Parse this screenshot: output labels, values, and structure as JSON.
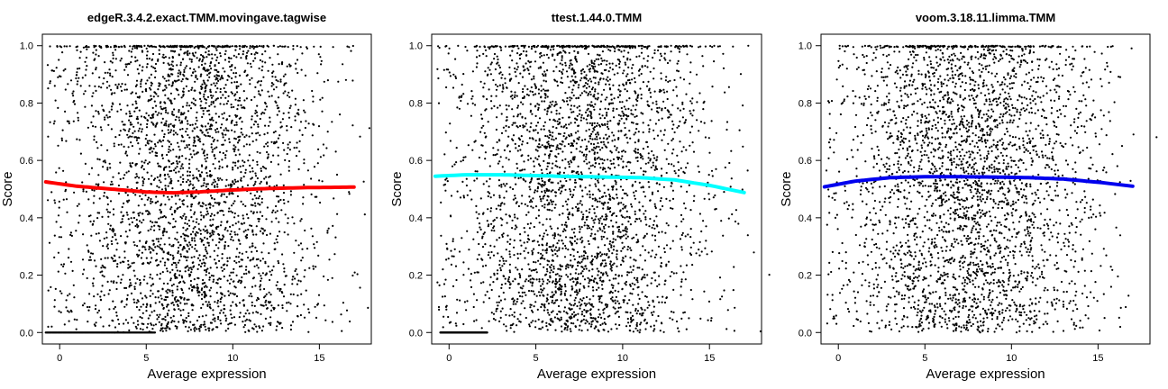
{
  "chart_data": [
    {
      "type": "scatter",
      "title": "edgeR.3.4.2.exact.TMM.movingave.tagwise",
      "xlabel": "Average expression",
      "ylabel": "Score",
      "xlim": [
        -1,
        18
      ],
      "ylim": [
        -0.04,
        1.04
      ],
      "x_ticks": [
        "0",
        "5",
        "10",
        "15"
      ],
      "y_ticks": [
        "0.0",
        "0.2",
        "0.4",
        "0.6",
        "0.8",
        "1.0"
      ],
      "grid": false,
      "point_color": "#000000",
      "trend": {
        "color": "#ff0000",
        "x": [
          -0.8,
          1,
          3,
          5,
          6.5,
          8,
          10,
          12,
          14,
          17
        ],
        "y": [
          0.525,
          0.51,
          0.5,
          0.49,
          0.487,
          0.49,
          0.497,
          0.502,
          0.505,
          0.507
        ]
      },
      "zero_score_run": {
        "x_min": -0.8,
        "x_max": 5.5
      }
    },
    {
      "type": "scatter",
      "title": "ttest.1.44.0.TMM",
      "xlabel": "Average expression",
      "ylabel": "Score",
      "xlim": [
        -1,
        18
      ],
      "ylim": [
        -0.04,
        1.04
      ],
      "x_ticks": [
        "0",
        "5",
        "10",
        "15"
      ],
      "y_ticks": [
        "0.0",
        "0.2",
        "0.4",
        "0.6",
        "0.8",
        "1.0"
      ],
      "grid": false,
      "point_color": "#000000",
      "trend": {
        "color": "#00ffff",
        "x": [
          -0.8,
          1,
          3,
          5,
          7,
          9,
          11,
          13,
          15,
          17
        ],
        "y": [
          0.545,
          0.55,
          0.55,
          0.547,
          0.544,
          0.542,
          0.54,
          0.532,
          0.513,
          0.488
        ]
      },
      "zero_score_run": {
        "x_min": -0.5,
        "x_max": 2.2
      }
    },
    {
      "type": "scatter",
      "title": "voom.3.18.11.limma.TMM",
      "xlabel": "Average expression",
      "ylabel": "Score",
      "xlim": [
        -1,
        18
      ],
      "ylim": [
        -0.04,
        1.04
      ],
      "x_ticks": [
        "0",
        "5",
        "10",
        "15"
      ],
      "y_ticks": [
        "0.0",
        "0.2",
        "0.4",
        "0.6",
        "0.8",
        "1.0"
      ],
      "grid": false,
      "point_color": "#000000",
      "trend": {
        "color": "#0000ee",
        "x": [
          -0.8,
          1,
          3,
          5,
          7,
          9,
          11,
          13,
          15,
          17
        ],
        "y": [
          0.508,
          0.528,
          0.54,
          0.543,
          0.543,
          0.542,
          0.54,
          0.535,
          0.524,
          0.51
        ]
      },
      "zero_score_run": null
    }
  ]
}
